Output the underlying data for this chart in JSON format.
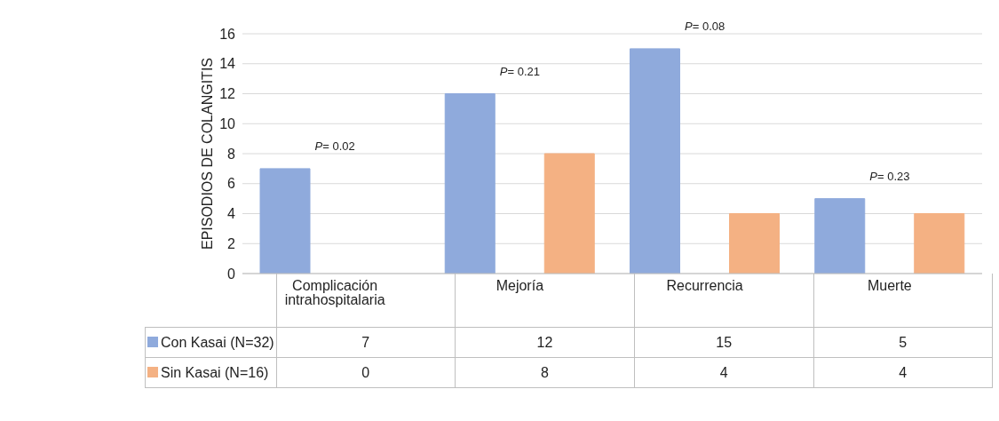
{
  "chart_data": {
    "type": "bar",
    "ylabel": "EPISODIOS DE COLANGITIS",
    "categories": [
      "Complicación intrahospitalaria",
      "Mejoría",
      "Recurrencia",
      "Muerte"
    ],
    "series": [
      {
        "name": "Con Kasai (N=32)",
        "color": "#8faadc",
        "values": [
          7,
          12,
          15,
          5
        ]
      },
      {
        "name": "Sin Kasai (N=16)",
        "color": "#f4b183",
        "values": [
          0,
          8,
          4,
          4
        ]
      }
    ],
    "ylim": [
      0,
      16
    ],
    "yticks": [
      0,
      2,
      4,
      6,
      8,
      10,
      12,
      14,
      16
    ],
    "grid": "y",
    "legend": "bottom left",
    "data_labels": true,
    "annotations": [
      "P= 0.02",
      "P= 0.21",
      "P= 0.08",
      "P= 0.23"
    ]
  }
}
